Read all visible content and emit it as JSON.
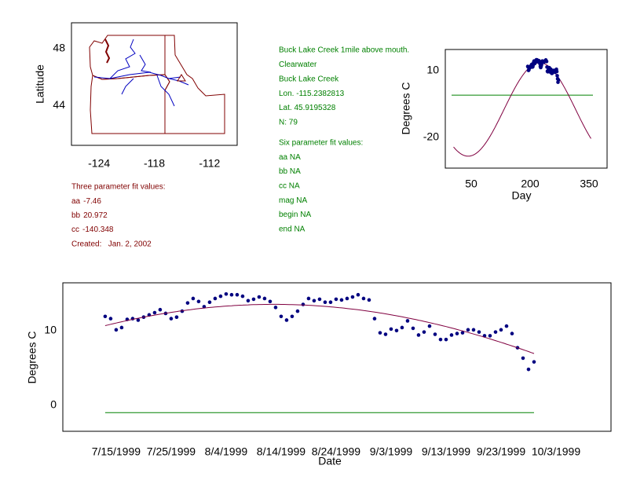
{
  "chart_data": [
    {
      "type": "map",
      "ylabel": "Latitude",
      "xlim": [
        -127,
        -109
      ],
      "ylim": [
        41.2,
        49.8
      ],
      "xticks": [
        -124,
        -118,
        -112
      ],
      "yticks": [
        44,
        48
      ]
    },
    {
      "type": "fit",
      "xlabel": "Day",
      "ylabel": "Degrees C",
      "xlim": [
        -16,
        396
      ],
      "ylim": [
        -33.8,
        19.5
      ],
      "xticks": [
        50,
        200,
        350
      ],
      "yticks": [
        -20,
        10
      ],
      "curve_x": [
        5,
        355
      ],
      "fit_color": "#800040",
      "reference": {
        "value": -1,
        "x": [
          0,
          360
        ],
        "color": "#008000"
      }
    },
    {
      "type": "scatter",
      "xlabel": "Date",
      "ylabel": "Degrees C",
      "xlim": [
        186.3,
        286
      ],
      "ylim": [
        -3.5,
        16.4
      ],
      "xticks": [
        {
          "value": 196,
          "label": "7/15/1999"
        },
        {
          "value": 206,
          "label": "7/25/1999"
        },
        {
          "value": 216,
          "label": "8/4/1999"
        },
        {
          "value": 226,
          "label": "8/14/1999"
        },
        {
          "value": 236,
          "label": "8/24/1999"
        },
        {
          "value": 246,
          "label": "9/3/1999"
        },
        {
          "value": 256,
          "label": "9/13/1999"
        },
        {
          "value": 266,
          "label": "9/23/1999"
        },
        {
          "value": 276,
          "label": "10/3/1999"
        }
      ],
      "yticks": [
        0,
        10
      ],
      "x": [
        194,
        195,
        196,
        197,
        198,
        199,
        200,
        201,
        202,
        203,
        204,
        205,
        206,
        207,
        208,
        209,
        210,
        211,
        212,
        213,
        214,
        215,
        216,
        217,
        218,
        219,
        220,
        221,
        222,
        223,
        224,
        225,
        226,
        227,
        228,
        229,
        230,
        231,
        232,
        233,
        234,
        235,
        236,
        237,
        238,
        239,
        240,
        241,
        242,
        243,
        244,
        245,
        246,
        247,
        248,
        249,
        250,
        251,
        252,
        253,
        254,
        255,
        256,
        257,
        258,
        259,
        260,
        261,
        262,
        263,
        264,
        265,
        266,
        267,
        268,
        269,
        270,
        271,
        272
      ],
      "series": [
        {
          "color": "#000080",
          "values": [
            11.9,
            11.6,
            10.1,
            10.4,
            11.5,
            11.6,
            11.4,
            11.8,
            12.1,
            12.4,
            12.8,
            12.3,
            11.6,
            11.8,
            12.6,
            13.7,
            14.3,
            13.9,
            13.2,
            13.8,
            14.3,
            14.6,
            14.9,
            14.8,
            14.8,
            14.6,
            14.0,
            14.2,
            14.5,
            14.3,
            13.9,
            13.1,
            11.9,
            11.4,
            11.9,
            12.6,
            13.5,
            14.3,
            14.0,
            14.2,
            13.8,
            13.8,
            14.2,
            14.1,
            14.3,
            14.5,
            14.8,
            14.3,
            14.1,
            11.6,
            9.7,
            9.5,
            10.2,
            10.0,
            10.4,
            11.3,
            10.3,
            9.4,
            9.8,
            10.6,
            9.5,
            8.8,
            8.8,
            9.4,
            9.6,
            9.7,
            10.1,
            10.1,
            9.8,
            9.3,
            9.3,
            9.8,
            10.1,
            10.6,
            9.6,
            7.7,
            6.3,
            4.8,
            5.8
          ]
        }
      ],
      "fit_color": "#800040",
      "reference": {
        "value": -1,
        "x": [
          194,
          272
        ],
        "color": "#008000"
      }
    }
  ],
  "site_info": [
    "Buck Lake Creek 1mile above mouth.",
    "Clearwater",
    "Buck Lake Creek",
    "Lon. -115.2382813",
    "Lat. 45.9195328",
    "N: 79"
  ],
  "six_param": [
    "Six parameter fit values:",
    "aa NA",
    "bb NA",
    "cc NA",
    "mag NA",
    "begin NA",
    "end NA"
  ],
  "three_param": {
    "title": "Three parameter fit values:",
    "params": [
      {
        "label": "aa",
        "value": -7.46
      },
      {
        "label": "bb",
        "value": 20.972
      },
      {
        "label": "cc",
        "value": -140.348
      }
    ],
    "created": "Created:   Jan. 2, 2002"
  }
}
